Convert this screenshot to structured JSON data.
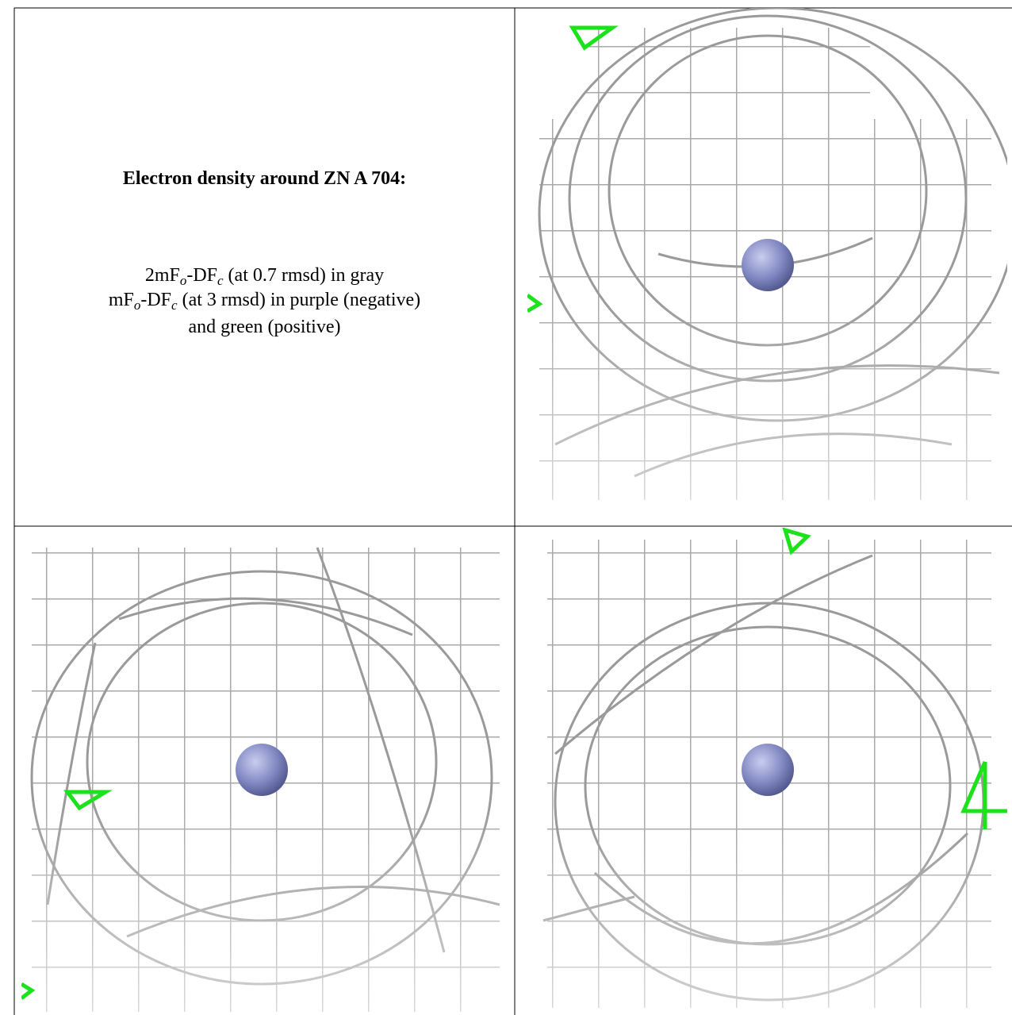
{
  "caption": {
    "title": "Electron density around ZN A 704:",
    "lines": [
      [
        "2mF",
        "o",
        "-DF",
        "c",
        " (at 0.7 rmsd) in gray"
      ],
      [
        "mF",
        "o",
        "-DF",
        "c",
        " (at 3 rmsd) in purple (negative)"
      ],
      [
        "and green (positive)"
      ]
    ]
  }
}
